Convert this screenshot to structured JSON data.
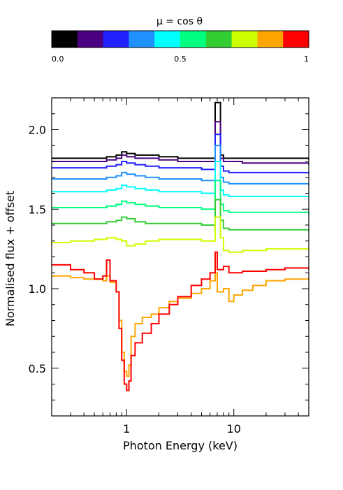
{
  "chart_data": [
    {
      "type": "heatmap",
      "title": "μ = cos θ",
      "colors": [
        "#000000",
        "#4b0082",
        "#2020ff",
        "#1e90ff",
        "#00ffff",
        "#00ff7f",
        "#32cd32",
        "#ccff00",
        "#ffa500",
        "#ff0000"
      ],
      "range": [
        0,
        1
      ],
      "tick_labels": [
        "0.0",
        "0.5",
        "1"
      ],
      "tick_values": [
        0,
        0.5,
        1
      ]
    },
    {
      "type": "line",
      "xlabel": "Photon Energy (keV)",
      "ylabel": "Normalised flux + offset",
      "xscale": "log",
      "xlim": [
        0.2,
        50
      ],
      "ylim": [
        0.2,
        2.2
      ],
      "x_tick_labels": [
        "1",
        "10"
      ],
      "x_tick_values": [
        1,
        10
      ],
      "y_tick_labels": [
        "0.5",
        "1.0",
        "1.5",
        "2.0"
      ],
      "y_tick_values": [
        0.5,
        1.0,
        1.5,
        2.0
      ],
      "series": [
        {
          "color": "#000000",
          "x": [
            0.2,
            0.3,
            0.5,
            0.65,
            0.8,
            0.9,
            1.0,
            1.2,
            1.5,
            2.0,
            2.5,
            3.0,
            4.0,
            5.0,
            6.0,
            6.7,
            7.5,
            8.0,
            9.0,
            12.0,
            20.0,
            50.0
          ],
          "y": [
            1.82,
            1.82,
            1.82,
            1.83,
            1.84,
            1.86,
            1.85,
            1.84,
            1.84,
            1.83,
            1.83,
            1.82,
            1.82,
            1.82,
            1.82,
            2.17,
            1.84,
            1.82,
            1.82,
            1.82,
            1.82,
            1.81
          ]
        },
        {
          "color": "#4b0082",
          "x": [
            0.2,
            0.3,
            0.5,
            0.65,
            0.8,
            0.9,
            1.0,
            1.2,
            1.5,
            2.0,
            2.5,
            3.0,
            4.0,
            5.0,
            6.0,
            6.7,
            7.5,
            8.0,
            9.0,
            12.0,
            20.0,
            50.0
          ],
          "y": [
            1.8,
            1.8,
            1.8,
            1.81,
            1.82,
            1.84,
            1.83,
            1.82,
            1.82,
            1.81,
            1.81,
            1.8,
            1.8,
            1.8,
            1.8,
            2.05,
            1.82,
            1.8,
            1.8,
            1.79,
            1.79,
            1.78
          ]
        },
        {
          "color": "#2020ff",
          "x": [
            0.2,
            0.3,
            0.5,
            0.65,
            0.8,
            0.9,
            1.0,
            1.2,
            1.5,
            2.0,
            2.5,
            3.0,
            4.0,
            5.0,
            6.0,
            6.7,
            7.5,
            8.0,
            9.0,
            12.0,
            20.0,
            50.0
          ],
          "y": [
            1.76,
            1.76,
            1.76,
            1.77,
            1.78,
            1.8,
            1.79,
            1.78,
            1.77,
            1.76,
            1.76,
            1.76,
            1.76,
            1.75,
            1.75,
            1.97,
            1.77,
            1.74,
            1.73,
            1.73,
            1.73,
            1.72
          ]
        },
        {
          "color": "#1e90ff",
          "x": [
            0.2,
            0.3,
            0.5,
            0.65,
            0.8,
            0.9,
            1.0,
            1.2,
            1.5,
            2.0,
            2.5,
            3.0,
            4.0,
            5.0,
            6.0,
            6.7,
            7.5,
            8.0,
            9.0,
            12.0,
            20.0,
            50.0
          ],
          "y": [
            1.69,
            1.69,
            1.69,
            1.7,
            1.71,
            1.73,
            1.72,
            1.71,
            1.7,
            1.69,
            1.69,
            1.69,
            1.69,
            1.68,
            1.68,
            1.9,
            1.7,
            1.67,
            1.66,
            1.66,
            1.66,
            1.65
          ]
        },
        {
          "color": "#00ffff",
          "x": [
            0.2,
            0.3,
            0.5,
            0.65,
            0.8,
            0.9,
            1.0,
            1.2,
            1.5,
            2.0,
            2.5,
            3.0,
            4.0,
            5.0,
            6.0,
            6.7,
            7.5,
            8.0,
            9.0,
            12.0,
            20.0,
            50.0
          ],
          "y": [
            1.61,
            1.61,
            1.61,
            1.62,
            1.63,
            1.65,
            1.64,
            1.63,
            1.62,
            1.61,
            1.61,
            1.61,
            1.61,
            1.6,
            1.6,
            1.8,
            1.62,
            1.59,
            1.58,
            1.58,
            1.58,
            1.57
          ]
        },
        {
          "color": "#00ff7f",
          "x": [
            0.2,
            0.3,
            0.5,
            0.65,
            0.8,
            0.9,
            1.0,
            1.2,
            1.5,
            2.0,
            2.5,
            3.0,
            4.0,
            5.0,
            6.0,
            6.7,
            7.5,
            8.0,
            9.0,
            12.0,
            20.0,
            50.0
          ],
          "y": [
            1.51,
            1.51,
            1.51,
            1.52,
            1.53,
            1.55,
            1.54,
            1.53,
            1.52,
            1.51,
            1.51,
            1.51,
            1.51,
            1.5,
            1.5,
            1.68,
            1.53,
            1.49,
            1.48,
            1.48,
            1.48,
            1.47
          ]
        },
        {
          "color": "#32cd32",
          "x": [
            0.2,
            0.3,
            0.5,
            0.65,
            0.8,
            0.9,
            1.0,
            1.2,
            1.5,
            2.0,
            2.5,
            3.0,
            4.0,
            5.0,
            6.0,
            6.7,
            7.5,
            8.0,
            9.0,
            12.0,
            20.0,
            50.0
          ],
          "y": [
            1.41,
            1.41,
            1.41,
            1.42,
            1.43,
            1.45,
            1.44,
            1.42,
            1.41,
            1.41,
            1.41,
            1.41,
            1.41,
            1.4,
            1.4,
            1.56,
            1.43,
            1.38,
            1.37,
            1.37,
            1.37,
            1.36
          ]
        },
        {
          "color": "#ccff00",
          "x": [
            0.2,
            0.3,
            0.5,
            0.65,
            0.8,
            0.9,
            1.0,
            1.2,
            1.5,
            2.0,
            2.5,
            3.0,
            4.0,
            5.0,
            6.0,
            6.7,
            7.5,
            8.0,
            9.0,
            12.0,
            20.0,
            50.0
          ],
          "y": [
            1.29,
            1.3,
            1.31,
            1.32,
            1.31,
            1.3,
            1.27,
            1.28,
            1.3,
            1.31,
            1.31,
            1.31,
            1.31,
            1.3,
            1.3,
            1.45,
            1.32,
            1.24,
            1.23,
            1.24,
            1.25,
            1.26
          ]
        },
        {
          "color": "#ffa500",
          "x": [
            0.2,
            0.3,
            0.4,
            0.5,
            0.6,
            0.65,
            0.7,
            0.8,
            0.85,
            0.9,
            0.95,
            1.0,
            1.05,
            1.1,
            1.2,
            1.4,
            1.7,
            2.0,
            2.5,
            3.0,
            4.0,
            5.0,
            6.0,
            6.7,
            7.0,
            8.0,
            9.0,
            10.0,
            12.0,
            15.0,
            20.0,
            30.0,
            50.0
          ],
          "y": [
            1.08,
            1.07,
            1.06,
            1.06,
            1.05,
            1.08,
            1.04,
            0.98,
            0.8,
            0.6,
            0.48,
            0.45,
            0.52,
            0.7,
            0.78,
            0.82,
            0.84,
            0.88,
            0.92,
            0.94,
            0.97,
            1.0,
            1.05,
            1.1,
            0.98,
            1.0,
            0.92,
            0.96,
            0.99,
            1.02,
            1.05,
            1.06,
            1.07
          ]
        },
        {
          "color": "#ff0000",
          "x": [
            0.2,
            0.3,
            0.4,
            0.5,
            0.6,
            0.65,
            0.7,
            0.8,
            0.85,
            0.9,
            0.95,
            1.0,
            1.05,
            1.1,
            1.2,
            1.4,
            1.7,
            2.0,
            2.5,
            3.0,
            4.0,
            5.0,
            6.0,
            6.7,
            7.0,
            8.0,
            9.0,
            10.0,
            12.0,
            15.0,
            20.0,
            30.0,
            50.0
          ],
          "y": [
            1.15,
            1.12,
            1.1,
            1.06,
            1.08,
            1.18,
            1.05,
            0.98,
            0.75,
            0.55,
            0.4,
            0.36,
            0.42,
            0.58,
            0.66,
            0.72,
            0.78,
            0.84,
            0.9,
            0.95,
            1.02,
            1.06,
            1.1,
            1.23,
            1.12,
            1.14,
            1.1,
            1.1,
            1.11,
            1.11,
            1.12,
            1.13,
            1.12
          ]
        }
      ]
    }
  ]
}
